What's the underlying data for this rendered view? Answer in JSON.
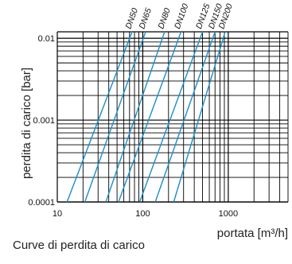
{
  "caption": "Curve di perdita di carico",
  "chart_data": {
    "type": "line",
    "title": "",
    "xlabel": "portata [m³/h]",
    "ylabel": "perdita di carico [bar]",
    "x_scale": "log",
    "y_scale": "log",
    "xlim": [
      10,
      5000
    ],
    "ylim": [
      0.0001,
      0.012
    ],
    "x_ticks": [
      {
        "value": 10,
        "label": "10"
      },
      {
        "value": 100,
        "label": "100"
      },
      {
        "value": 1000,
        "label": "1000"
      }
    ],
    "y_ticks": [
      {
        "value": 0.0001,
        "label": "0.0001"
      },
      {
        "value": 0.001,
        "label": "0.001"
      },
      {
        "value": 0.01,
        "label": "0.01"
      }
    ],
    "grid": true,
    "line_color": "#1a8fc9",
    "series": [
      {
        "name": "DN50",
        "points": [
          [
            13,
            0.0001
          ],
          [
            75,
            0.012
          ]
        ]
      },
      {
        "name": "DN65",
        "points": [
          [
            21,
            0.0001
          ],
          [
            108,
            0.012
          ]
        ]
      },
      {
        "name": "DN80",
        "points": [
          [
            37,
            0.0001
          ],
          [
            180,
            0.012
          ]
        ]
      },
      {
        "name": "DN100",
        "points": [
          [
            52,
            0.0001
          ],
          [
            280,
            0.012
          ]
        ]
      },
      {
        "name": "DN125",
        "points": [
          [
            92,
            0.0001
          ],
          [
            500,
            0.012
          ]
        ]
      },
      {
        "name": "DN150",
        "points": [
          [
            140,
            0.0001
          ],
          [
            700,
            0.012
          ]
        ]
      },
      {
        "name": "DN200",
        "points": [
          [
            230,
            0.0001
          ],
          [
            920,
            0.012
          ]
        ]
      }
    ]
  }
}
